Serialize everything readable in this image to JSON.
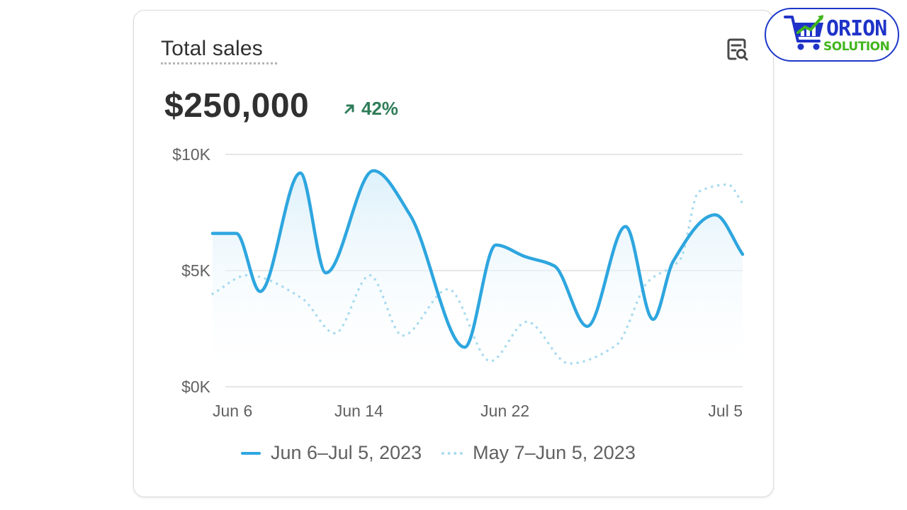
{
  "card": {
    "title": "Total sales",
    "total_value": "$250,000",
    "change_text": "42%",
    "explore_icon": "chart-search-icon",
    "change_icon": "arrow-up-right-icon"
  },
  "logo": {
    "word1": "ORION",
    "word2": "SOLUTION",
    "icon": "shopping-cart-chart-icon",
    "colors": {
      "primary": "#1f33c8",
      "accent": "#41b51d"
    }
  },
  "chart_data": {
    "type": "line",
    "title": "Total sales",
    "xlabel": "",
    "ylabel": "",
    "ylim": [
      0,
      10000
    ],
    "y_ticks": [
      {
        "value": 10000,
        "label": "$10K"
      },
      {
        "value": 5000,
        "label": "$5K"
      },
      {
        "value": 0,
        "label": "$0K"
      }
    ],
    "x_range": [
      0,
      29
    ],
    "x_ticks": [
      {
        "x": 0,
        "label": "Jun 6"
      },
      {
        "x": 8,
        "label": "Jun 14"
      },
      {
        "x": 16,
        "label": "Jun 22"
      },
      {
        "x": 29,
        "label": "Jul 5"
      }
    ],
    "grid": true,
    "legend_position": "bottom",
    "series": [
      {
        "name": "Jun 6–Jul 5, 2023",
        "style": "solid",
        "color": "#2ea6df",
        "fill": true,
        "x": [
          0,
          1.3,
          2.6,
          4.8,
          6.2,
          8.8,
          10.8,
          13.8,
          15.5,
          17.1,
          18.7,
          20.5,
          22.6,
          24.1,
          25.2,
          27.5,
          29
        ],
        "values": [
          6600,
          6600,
          4100,
          9200,
          4900,
          9300,
          7400,
          1700,
          6100,
          5600,
          5200,
          2600,
          6900,
          2900,
          5400,
          7400,
          5700
        ]
      },
      {
        "name": "May 7–Jun 5, 2023",
        "style": "dotted",
        "color": "#a9dbef",
        "fill": false,
        "x": [
          0,
          1.9,
          4.9,
          6.7,
          8.6,
          10.4,
          12.9,
          15.2,
          17.2,
          19.5,
          22.1,
          23.8,
          25.6,
          26.6,
          28.2,
          29
        ],
        "values": [
          4000,
          4800,
          3800,
          2300,
          4800,
          2200,
          4200,
          1100,
          2800,
          1000,
          1800,
          4500,
          5500,
          8400,
          8700,
          7900
        ]
      }
    ]
  }
}
